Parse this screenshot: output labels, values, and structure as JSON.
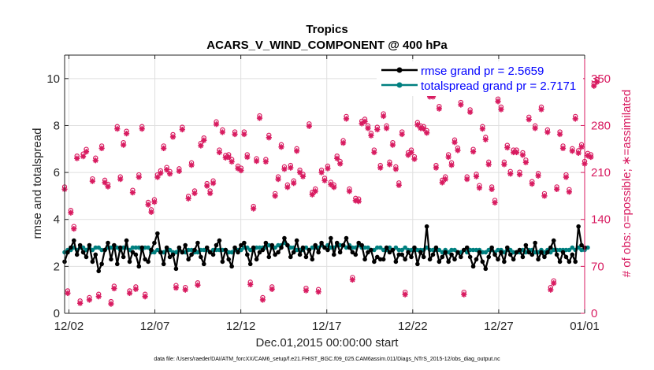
{
  "chart_data": {
    "type": "line",
    "title": "Tropics",
    "subtitle": "ACARS_V_WIND_COMPONENT @ 400 hPa",
    "xlabel": "Dec.01,2015 00:00:00 start",
    "ylabel": "rmse and totalspread",
    "y2label": "# of obs: o=possible; ∗=assimilated",
    "footer": "data file: /Users/raeder/DAI/ATM_forcXX/CAM6_setup/f.e21.FHIST_BGC.f09_025.CAM6assim.011/Diags_NTrS_2015-12/obs_diag_output.nc",
    "x_ticks": [
      "12/02",
      "12/07",
      "12/12",
      "12/17",
      "12/22",
      "12/27",
      "01/01"
    ],
    "x_tick_days": [
      1,
      6,
      11,
      16,
      21,
      26,
      31
    ],
    "xlim": [
      0.75,
      31
    ],
    "ylim": [
      0,
      11
    ],
    "y_ticks": [
      "0",
      "2",
      "4",
      "6",
      "8",
      "10"
    ],
    "y2lim": [
      0,
      385
    ],
    "y2_ticks": [
      "0",
      "70",
      "140",
      "210",
      "280",
      "350"
    ],
    "grid": true,
    "legend_position": "top-right",
    "legend": [
      {
        "label": "rmse grand pr = 2.5659",
        "color": "#000000"
      },
      {
        "label": "totalspread grand pr = 2.7171",
        "color": "#008080"
      }
    ],
    "series": [
      {
        "name": "rmse",
        "axis": "left",
        "color": "#000000",
        "values": [
          2.2,
          2.6,
          2.8,
          3.1,
          2.5,
          2.9,
          2.6,
          2.4,
          2.9,
          2.2,
          2.5,
          1.8,
          2.1,
          2.7,
          3.0,
          2.3,
          2.9,
          2.1,
          2.8,
          2.4,
          3.1,
          2.2,
          2.6,
          2.5,
          2.0,
          2.8,
          2.3,
          2.2,
          2.7,
          3.0,
          3.4,
          2.6,
          2.1,
          2.8,
          2.4,
          2.5,
          1.9,
          2.8,
          2.6,
          2.9,
          2.3,
          2.5,
          2.7,
          3.0,
          2.4,
          2.1,
          2.8,
          2.6,
          2.5,
          2.9,
          3.1,
          2.2,
          2.7,
          2.3,
          2.0,
          2.8,
          2.6,
          2.9,
          3.0,
          2.5,
          2.1,
          2.8,
          2.3,
          2.6,
          2.7,
          3.0,
          2.4,
          2.9,
          2.5,
          2.6,
          2.8,
          3.2,
          2.9,
          2.4,
          2.6,
          3.1,
          2.5,
          2.8,
          2.4,
          2.7,
          2.3,
          2.9,
          2.6,
          3.0,
          2.8,
          2.7,
          3.2,
          2.5,
          3.0,
          2.6,
          2.9,
          3.2,
          2.8,
          2.6,
          2.5,
          3.0,
          2.9,
          2.3,
          2.6,
          2.7,
          2.2,
          2.4,
          2.3,
          2.3,
          2.8,
          2.6,
          2.7,
          2.2,
          2.5,
          2.5,
          2.3,
          2.6,
          2.4,
          2.8,
          2.1,
          2.6,
          2.4,
          3.7,
          2.3,
          2.5,
          2.8,
          2.2,
          2.4,
          2.6,
          2.2,
          2.5,
          2.3,
          2.6,
          2.4,
          2.7,
          2.8,
          2.4,
          2.0,
          2.3,
          2.6,
          2.2,
          1.9,
          2.4,
          2.8,
          2.5,
          2.3,
          2.6,
          2.2,
          2.8,
          2.5,
          2.3,
          2.6,
          2.7,
          2.4,
          2.9,
          2.6,
          2.5,
          3.0,
          2.3,
          2.6,
          2.4,
          2.6,
          2.8,
          3.1,
          2.5,
          2.2,
          2.6,
          2.4,
          2.2,
          2.5,
          2.2,
          3.7,
          2.9,
          2.8
        ]
      },
      {
        "name": "totalspread",
        "axis": "left",
        "color": "#008080",
        "values": [
          2.6,
          2.7,
          2.7,
          2.8,
          2.7,
          2.8,
          2.8,
          2.7,
          2.8,
          2.7,
          2.8,
          2.8,
          2.7,
          2.7,
          2.8,
          2.8,
          2.8,
          2.8,
          2.7,
          2.8,
          2.8,
          2.7,
          2.8,
          2.8,
          2.8,
          2.7,
          2.8,
          2.8,
          2.6,
          2.6,
          2.7,
          2.6,
          2.6,
          2.7,
          2.7,
          2.6,
          2.6,
          2.7,
          2.6,
          2.6,
          2.7,
          2.7,
          2.6,
          2.6,
          2.7,
          2.7,
          2.7,
          2.6,
          2.7,
          2.7,
          2.7,
          2.7,
          2.7,
          2.6,
          2.6,
          2.7,
          2.7,
          2.7,
          2.8,
          2.8,
          2.7,
          2.7,
          2.8,
          2.8,
          2.8,
          2.8,
          2.9,
          2.8,
          2.8,
          2.9,
          2.9,
          3.0,
          2.9,
          2.8,
          2.8,
          2.7,
          2.7,
          2.7,
          2.8,
          2.7,
          2.8,
          2.8,
          2.8,
          2.9,
          2.8,
          2.9,
          2.8,
          2.8,
          2.9,
          2.9,
          2.9,
          2.8,
          2.9,
          2.8,
          2.8,
          2.9,
          2.8,
          2.8,
          2.8,
          2.7,
          2.7,
          2.8,
          2.8,
          2.7,
          2.7,
          2.8,
          2.7,
          2.8,
          2.7,
          2.7,
          2.8,
          2.7,
          2.7,
          2.7,
          2.7,
          2.7,
          2.7,
          2.8,
          2.7,
          2.7,
          2.7,
          2.7,
          2.6,
          2.7,
          2.6,
          2.7,
          2.7,
          2.6,
          2.6,
          2.7,
          2.6,
          2.7,
          2.7,
          2.7,
          2.7,
          2.6,
          2.6,
          2.7,
          2.7,
          2.6,
          2.7,
          2.7,
          2.6,
          2.7,
          2.7,
          2.6,
          2.6,
          2.6,
          2.7,
          2.6,
          2.7,
          2.7,
          2.6,
          2.6,
          2.7,
          2.6,
          2.7,
          2.6,
          2.7,
          2.7,
          2.7,
          2.7,
          2.7,
          2.7,
          2.8,
          2.7,
          2.8,
          2.7,
          2.7,
          2.8
        ]
      },
      {
        "name": "obs possible / assimilated",
        "axis": "right",
        "color": "#d81b60",
        "marker": "circle+asterisk",
        "values": [
          185,
          30,
          150,
          126,
          231,
          15,
          234,
          241,
          20,
          197,
          228,
          25,
          246,
          195,
          189,
          14,
          37,
          275,
          200,
          251,
          268,
          30,
          180,
          36,
          203,
          275,
          25,
          162,
          151,
          166,
          203,
          209,
          246,
          214,
          208,
          263,
          38,
          212,
          274,
          35,
          171,
          221,
          179,
          42,
          250,
          258,
          190,
          179,
          194,
          282,
          240,
          270,
          232,
          233,
          226,
          267,
          216,
          213,
          267,
          233,
          43,
          156,
          227,
          291,
          20,
          226,
          262,
          36,
          175,
          200,
          248,
          215,
          188,
          217,
          194,
          242,
          210,
          204,
          34,
          279,
          177,
          182,
          32,
          210,
          198,
          216,
          192,
          188,
          231,
          223,
          254,
          290,
          182,
          50,
          168,
          167,
          283,
          286,
          276,
          265,
          240,
          274,
          217,
          294,
          276,
          222,
          251,
          215,
          191,
          267,
          28,
          236,
          240,
          230,
          281,
          276,
          275,
          269,
          323,
          323,
          217,
          305,
          195,
          200,
          233,
          221,
          255,
          243,
          311,
          28,
          200,
          300,
          241,
          204,
          187,
          275,
          259,
          222,
          185,
          165,
          316,
          304,
          222,
          247,
          208,
          240,
          240,
          207,
          236,
          225,
          289,
          193,
          276,
          205,
          304,
          175,
          270,
          35,
          45,
          185,
          267,
          246,
          203,
          181,
          242,
          290,
          239,
          248,
          223,
          235,
          233,
          339,
          345
        ]
      }
    ]
  }
}
